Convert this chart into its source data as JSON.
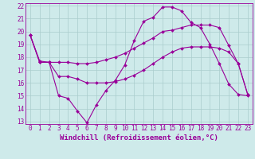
{
  "bg_color": "#ceeaea",
  "line_color": "#990099",
  "xlim": [
    -0.5,
    23.5
  ],
  "ylim": [
    12.8,
    22.2
  ],
  "yticks": [
    13,
    14,
    15,
    16,
    17,
    18,
    19,
    20,
    21,
    22
  ],
  "xticks": [
    0,
    1,
    2,
    3,
    4,
    5,
    6,
    7,
    8,
    9,
    10,
    11,
    12,
    13,
    14,
    15,
    16,
    17,
    18,
    19,
    20,
    21,
    22,
    23
  ],
  "xlabel": "Windchill (Refroidissement éolien,°C)",
  "line1_x": [
    0,
    1,
    2,
    3,
    4,
    5,
    6,
    7,
    8,
    9,
    10,
    11,
    12,
    13,
    14,
    15,
    16,
    17,
    18,
    19,
    20,
    21,
    22,
    23
  ],
  "line1_y": [
    19.7,
    17.6,
    17.6,
    15.0,
    14.8,
    13.8,
    12.9,
    14.3,
    15.4,
    16.2,
    17.4,
    19.3,
    20.8,
    21.1,
    21.9,
    21.9,
    21.6,
    20.7,
    20.3,
    19.0,
    17.5,
    15.9,
    15.1,
    15.0
  ],
  "line2_x": [
    0,
    1,
    2,
    3,
    4,
    5,
    6,
    7,
    8,
    9,
    10,
    11,
    12,
    13,
    14,
    15,
    16,
    17,
    18,
    19,
    20,
    21,
    22,
    23
  ],
  "line2_y": [
    19.7,
    17.6,
    17.6,
    16.5,
    16.5,
    16.3,
    16.0,
    16.0,
    16.0,
    16.1,
    16.3,
    16.6,
    17.0,
    17.5,
    18.0,
    18.4,
    18.7,
    18.8,
    18.8,
    18.8,
    18.7,
    18.4,
    17.5,
    15.1
  ],
  "line3_x": [
    0,
    1,
    2,
    3,
    4,
    5,
    6,
    7,
    8,
    9,
    10,
    11,
    12,
    13,
    14,
    15,
    16,
    17,
    18,
    19,
    20,
    21,
    22,
    23
  ],
  "line3_y": [
    19.7,
    17.7,
    17.6,
    17.6,
    17.6,
    17.5,
    17.5,
    17.6,
    17.8,
    18.0,
    18.3,
    18.7,
    19.1,
    19.5,
    20.0,
    20.1,
    20.3,
    20.5,
    20.5,
    20.5,
    20.3,
    18.9,
    17.5,
    15.1
  ],
  "grid_color": "#aacccc",
  "tick_fontsize": 5.5,
  "xlabel_fontsize": 6.5,
  "marker": "D",
  "marker_size": 2.0,
  "linewidth": 0.8
}
